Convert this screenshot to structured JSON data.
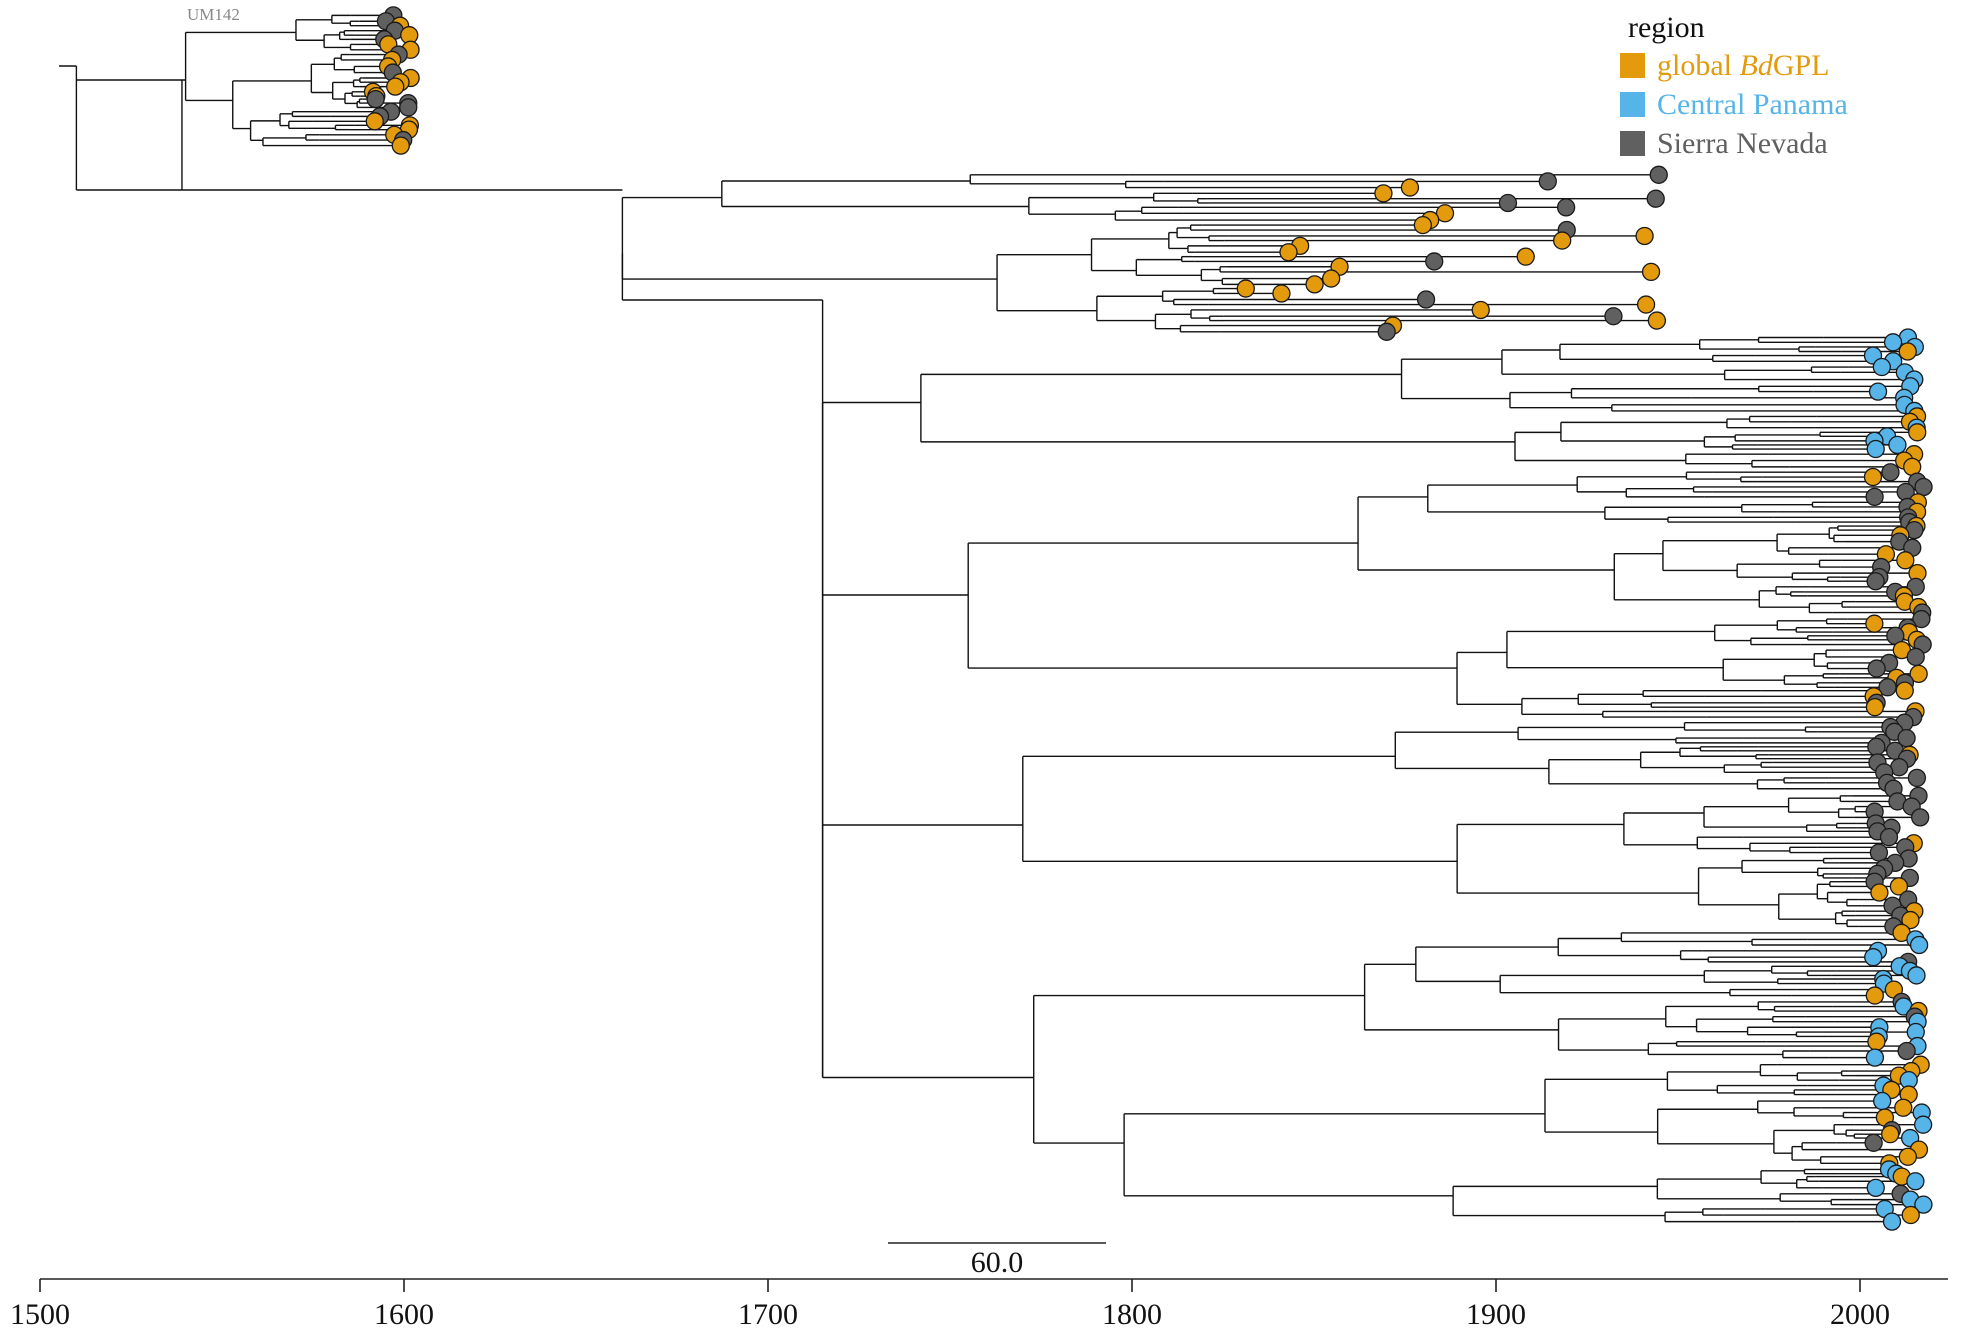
{
  "legend": {
    "title": "region",
    "items": [
      {
        "key": "global",
        "prefix": "global ",
        "italic": "Bd",
        "suffix": "GPL",
        "color": "#E39A0C"
      },
      {
        "key": "panama",
        "prefix": "Central Panama",
        "italic": "",
        "suffix": "",
        "color": "#56B4E9"
      },
      {
        "key": "sierra",
        "prefix": "Sierra Nevada",
        "italic": "",
        "suffix": "",
        "color": "#606060"
      }
    ]
  },
  "outgroup_label": "UM142",
  "scale_bar": {
    "label": "60.0",
    "length_years": 60
  },
  "axis": {
    "ticks": [
      "1500",
      "1600",
      "1700",
      "1800",
      "1900",
      "2000"
    ],
    "range": [
      1500,
      2017
    ]
  }
}
